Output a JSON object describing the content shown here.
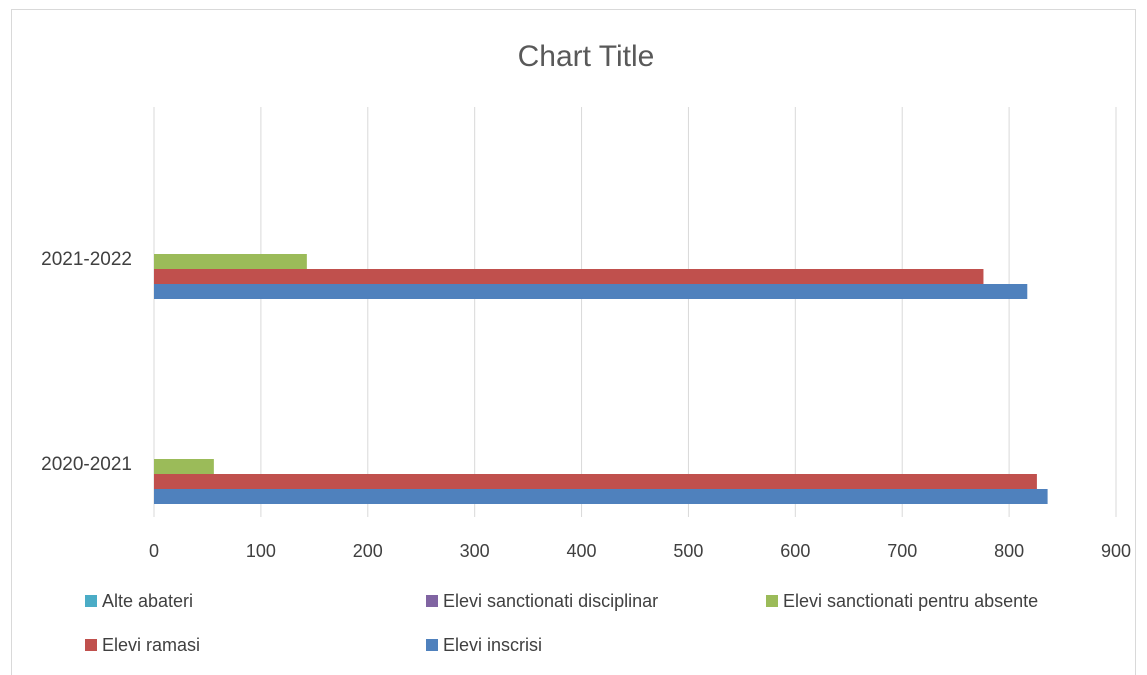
{
  "chart_data": {
    "type": "bar",
    "orientation": "horizontal",
    "title": "Chart Title",
    "categories": [
      "2020-2021",
      "2021-2022"
    ],
    "xlim": [
      0,
      900
    ],
    "xticks": [
      0,
      100,
      200,
      300,
      400,
      500,
      600,
      700,
      800,
      900
    ],
    "grid": true,
    "legend_position": "bottom",
    "series": [
      {
        "name": "Elevi inscrisi",
        "color": "#4f81bd",
        "values": [
          836,
          817
        ]
      },
      {
        "name": "Elevi ramasi",
        "color": "#c0504d",
        "values": [
          826,
          776
        ]
      },
      {
        "name": "Elevi sanctionati pentru absente",
        "color": "#9bbb59",
        "values": [
          56,
          143
        ]
      },
      {
        "name": "Elevi sanctionati disciplinar",
        "color": "#8064a2",
        "values": [
          0,
          0
        ]
      },
      {
        "name": "Alte abateri",
        "color": "#4bacc6",
        "values": [
          0,
          0
        ]
      }
    ],
    "legend_order": [
      "Alte abateri",
      "Elevi sanctionati disciplinar",
      "Elevi sanctionati pentru absente",
      "Elevi ramasi",
      "Elevi inscrisi"
    ]
  }
}
